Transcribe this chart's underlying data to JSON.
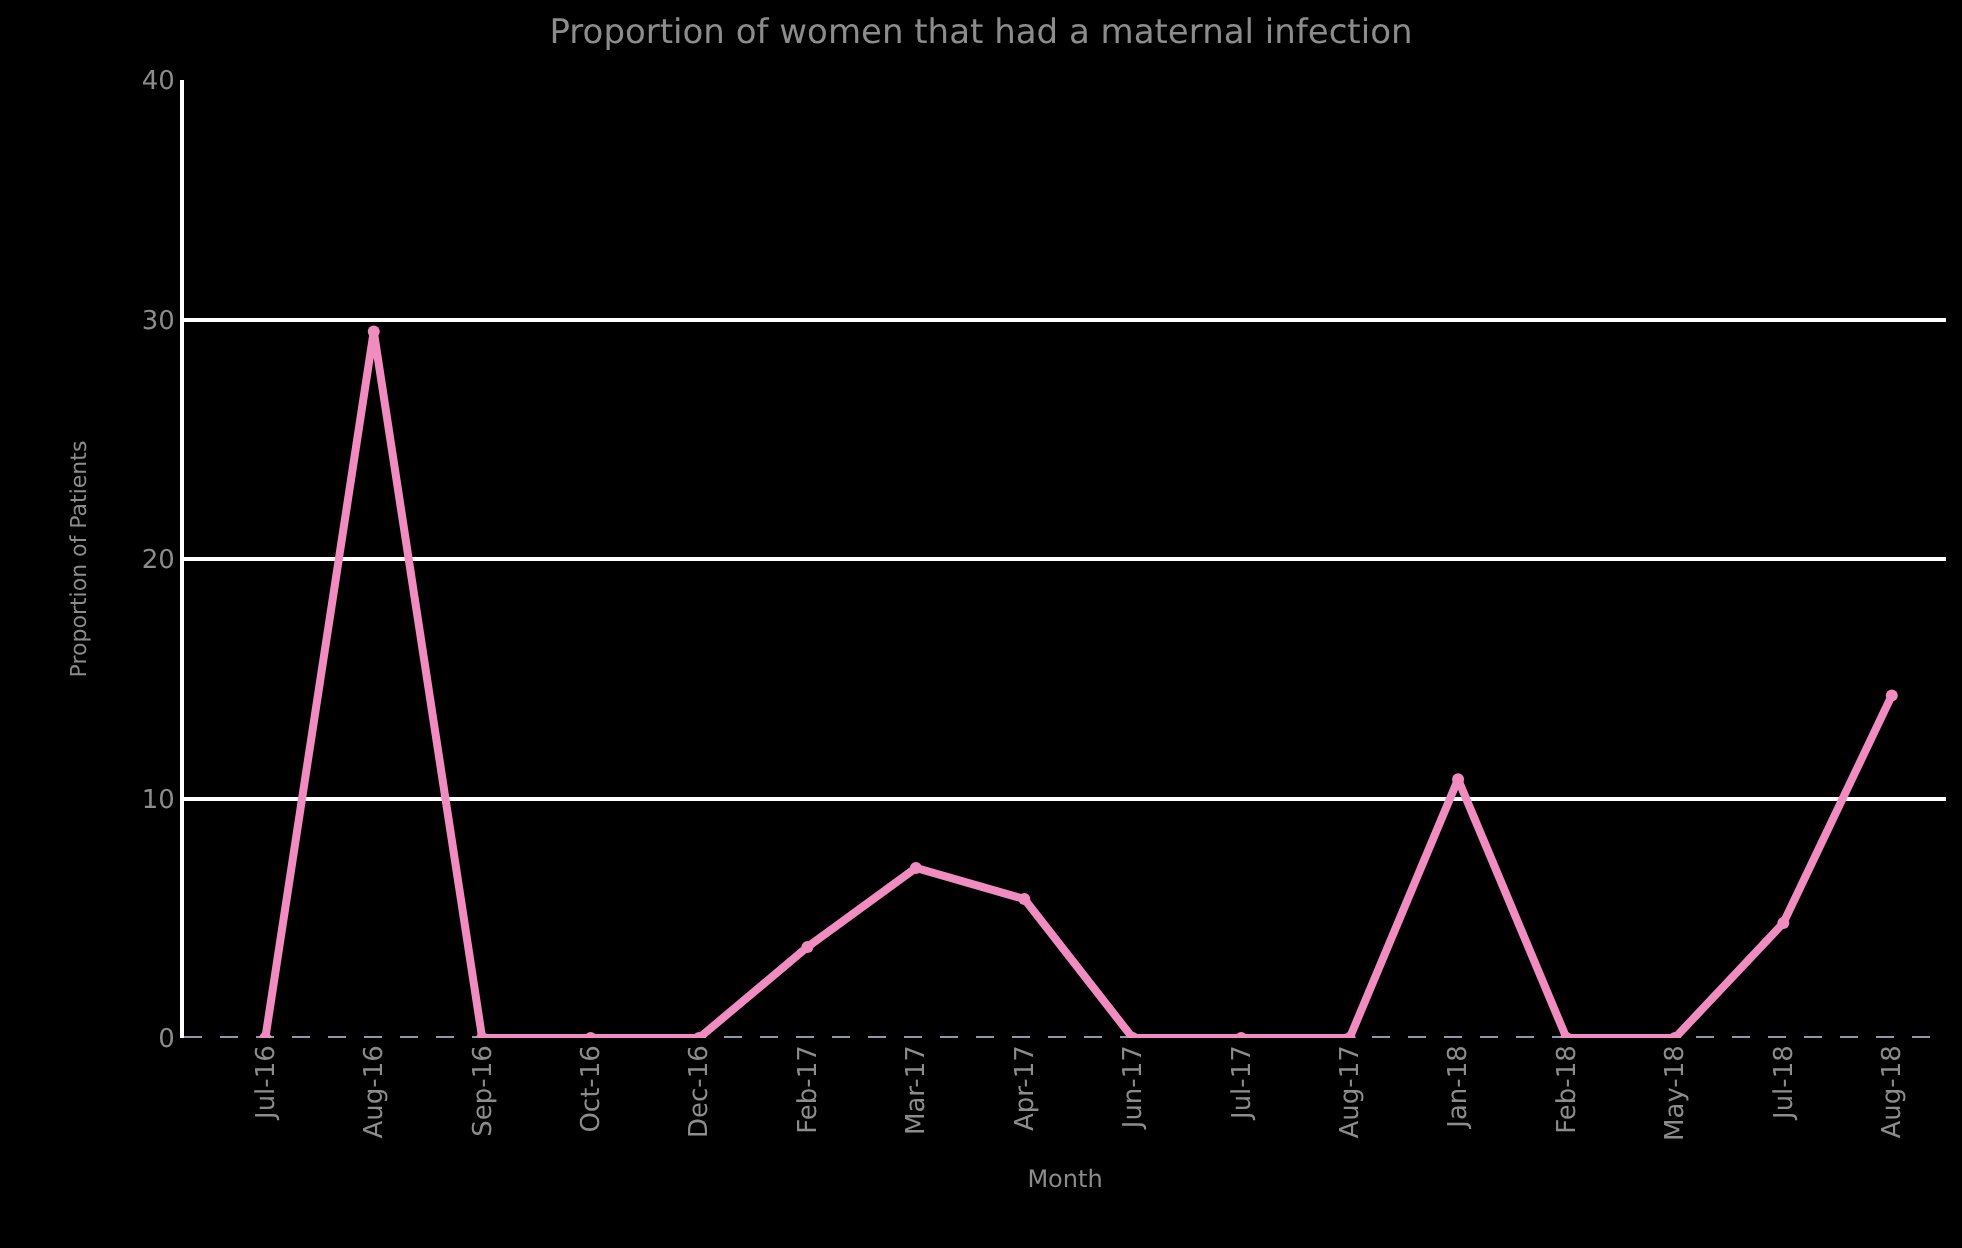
{
  "chart_data": {
    "type": "line",
    "title": "Proportion of women that had a maternal infection",
    "xlabel": "Month",
    "ylabel": "Proportion of Patients",
    "categories": [
      "Jul-16",
      "Aug-16",
      "Sep-16",
      "Oct-16",
      "Dec-16",
      "Feb-17",
      "Mar-17",
      "Apr-17",
      "Jun-17",
      "Jul-17",
      "Aug-17",
      "Jan-18",
      "Feb-18",
      "May-18",
      "Jul-18",
      "Aug-18"
    ],
    "series": [
      {
        "color": "#f08cc0",
        "values": [
          0,
          29.5,
          0,
          0,
          0,
          3.8,
          7.1,
          5.8,
          0,
          0,
          0,
          10.8,
          0,
          0,
          4.8,
          14.3
        ]
      }
    ],
    "ylim": [
      0,
      40
    ],
    "yticks": [
      0,
      10,
      20,
      30,
      40
    ],
    "grid": "y",
    "marker": "circle",
    "line_style": "solid",
    "ref_lines": [
      {
        "axis": "y",
        "value": 0,
        "color": "#8a9aa8",
        "line_style": "dashed"
      }
    ]
  }
}
